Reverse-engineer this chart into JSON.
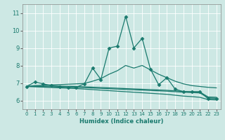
{
  "xlabel": "Humidex (Indice chaleur)",
  "bg_color": "#cde8e4",
  "line_color": "#1a7a6e",
  "grid_color": "#ffffff",
  "xlim": [
    -0.5,
    23.5
  ],
  "ylim": [
    5.5,
    11.5
  ],
  "yticks": [
    6,
    7,
    8,
    9,
    10,
    11
  ],
  "xticks": [
    0,
    1,
    2,
    3,
    4,
    5,
    6,
    7,
    8,
    9,
    10,
    11,
    12,
    13,
    14,
    15,
    16,
    17,
    18,
    19,
    20,
    21,
    22,
    23
  ],
  "series": [
    {
      "x": [
        0,
        1,
        2,
        3,
        4,
        5,
        6,
        7,
        8,
        9,
        10,
        11,
        12,
        13,
        14,
        15,
        16,
        17,
        18,
        19,
        20,
        21,
        22,
        23
      ],
      "y": [
        6.8,
        7.05,
        6.95,
        6.85,
        6.8,
        6.75,
        6.75,
        6.95,
        7.85,
        7.2,
        9.0,
        9.1,
        10.8,
        9.0,
        9.55,
        7.8,
        6.9,
        7.3,
        6.65,
        6.5,
        6.5,
        6.5,
        6.1,
        6.1
      ],
      "marker": "D",
      "markersize": 2.5,
      "lw": 0.9
    },
    {
      "x": [
        0,
        1,
        2,
        3,
        4,
        5,
        6,
        7,
        8,
        9,
        10,
        11,
        12,
        13,
        14,
        15,
        16,
        17,
        18,
        19,
        20,
        21,
        22,
        23
      ],
      "y": [
        6.8,
        6.85,
        6.87,
        6.89,
        6.91,
        6.93,
        6.95,
        6.97,
        7.1,
        7.25,
        7.5,
        7.7,
        8.0,
        7.85,
        8.0,
        7.75,
        7.5,
        7.3,
        7.1,
        6.95,
        6.85,
        6.8,
        6.75,
        6.72
      ],
      "marker": null,
      "markersize": 0,
      "lw": 0.9
    },
    {
      "x": [
        0,
        1,
        2,
        3,
        4,
        5,
        6,
        7,
        8,
        9,
        10,
        11,
        12,
        13,
        14,
        15,
        16,
        17,
        18,
        19,
        20,
        21,
        22,
        23
      ],
      "y": [
        6.8,
        6.82,
        6.82,
        6.82,
        6.82,
        6.81,
        6.8,
        6.78,
        6.76,
        6.74,
        6.72,
        6.7,
        6.68,
        6.66,
        6.64,
        6.62,
        6.6,
        6.58,
        6.55,
        6.52,
        6.5,
        6.48,
        6.2,
        6.18
      ],
      "marker": null,
      "markersize": 0,
      "lw": 0.9
    },
    {
      "x": [
        0,
        1,
        2,
        3,
        4,
        5,
        6,
        7,
        8,
        9,
        10,
        11,
        12,
        13,
        14,
        15,
        16,
        17,
        18,
        19,
        20,
        21,
        22,
        23
      ],
      "y": [
        6.8,
        6.8,
        6.79,
        6.78,
        6.77,
        6.76,
        6.75,
        6.73,
        6.71,
        6.69,
        6.67,
        6.65,
        6.63,
        6.61,
        6.59,
        6.57,
        6.55,
        6.53,
        6.5,
        6.47,
        6.45,
        6.43,
        6.15,
        6.13
      ],
      "marker": null,
      "markersize": 0,
      "lw": 0.9
    },
    {
      "x": [
        0,
        1,
        2,
        3,
        4,
        5,
        6,
        7,
        8,
        9,
        10,
        11,
        12,
        13,
        14,
        15,
        16,
        17,
        18,
        19,
        20,
        21,
        22,
        23
      ],
      "y": [
        6.8,
        6.78,
        6.76,
        6.74,
        6.72,
        6.7,
        6.68,
        6.65,
        6.62,
        6.59,
        6.56,
        6.53,
        6.5,
        6.47,
        6.44,
        6.41,
        6.38,
        6.35,
        6.3,
        6.25,
        6.22,
        6.18,
        6.05,
        6.03
      ],
      "marker": null,
      "markersize": 0,
      "lw": 0.9
    }
  ]
}
